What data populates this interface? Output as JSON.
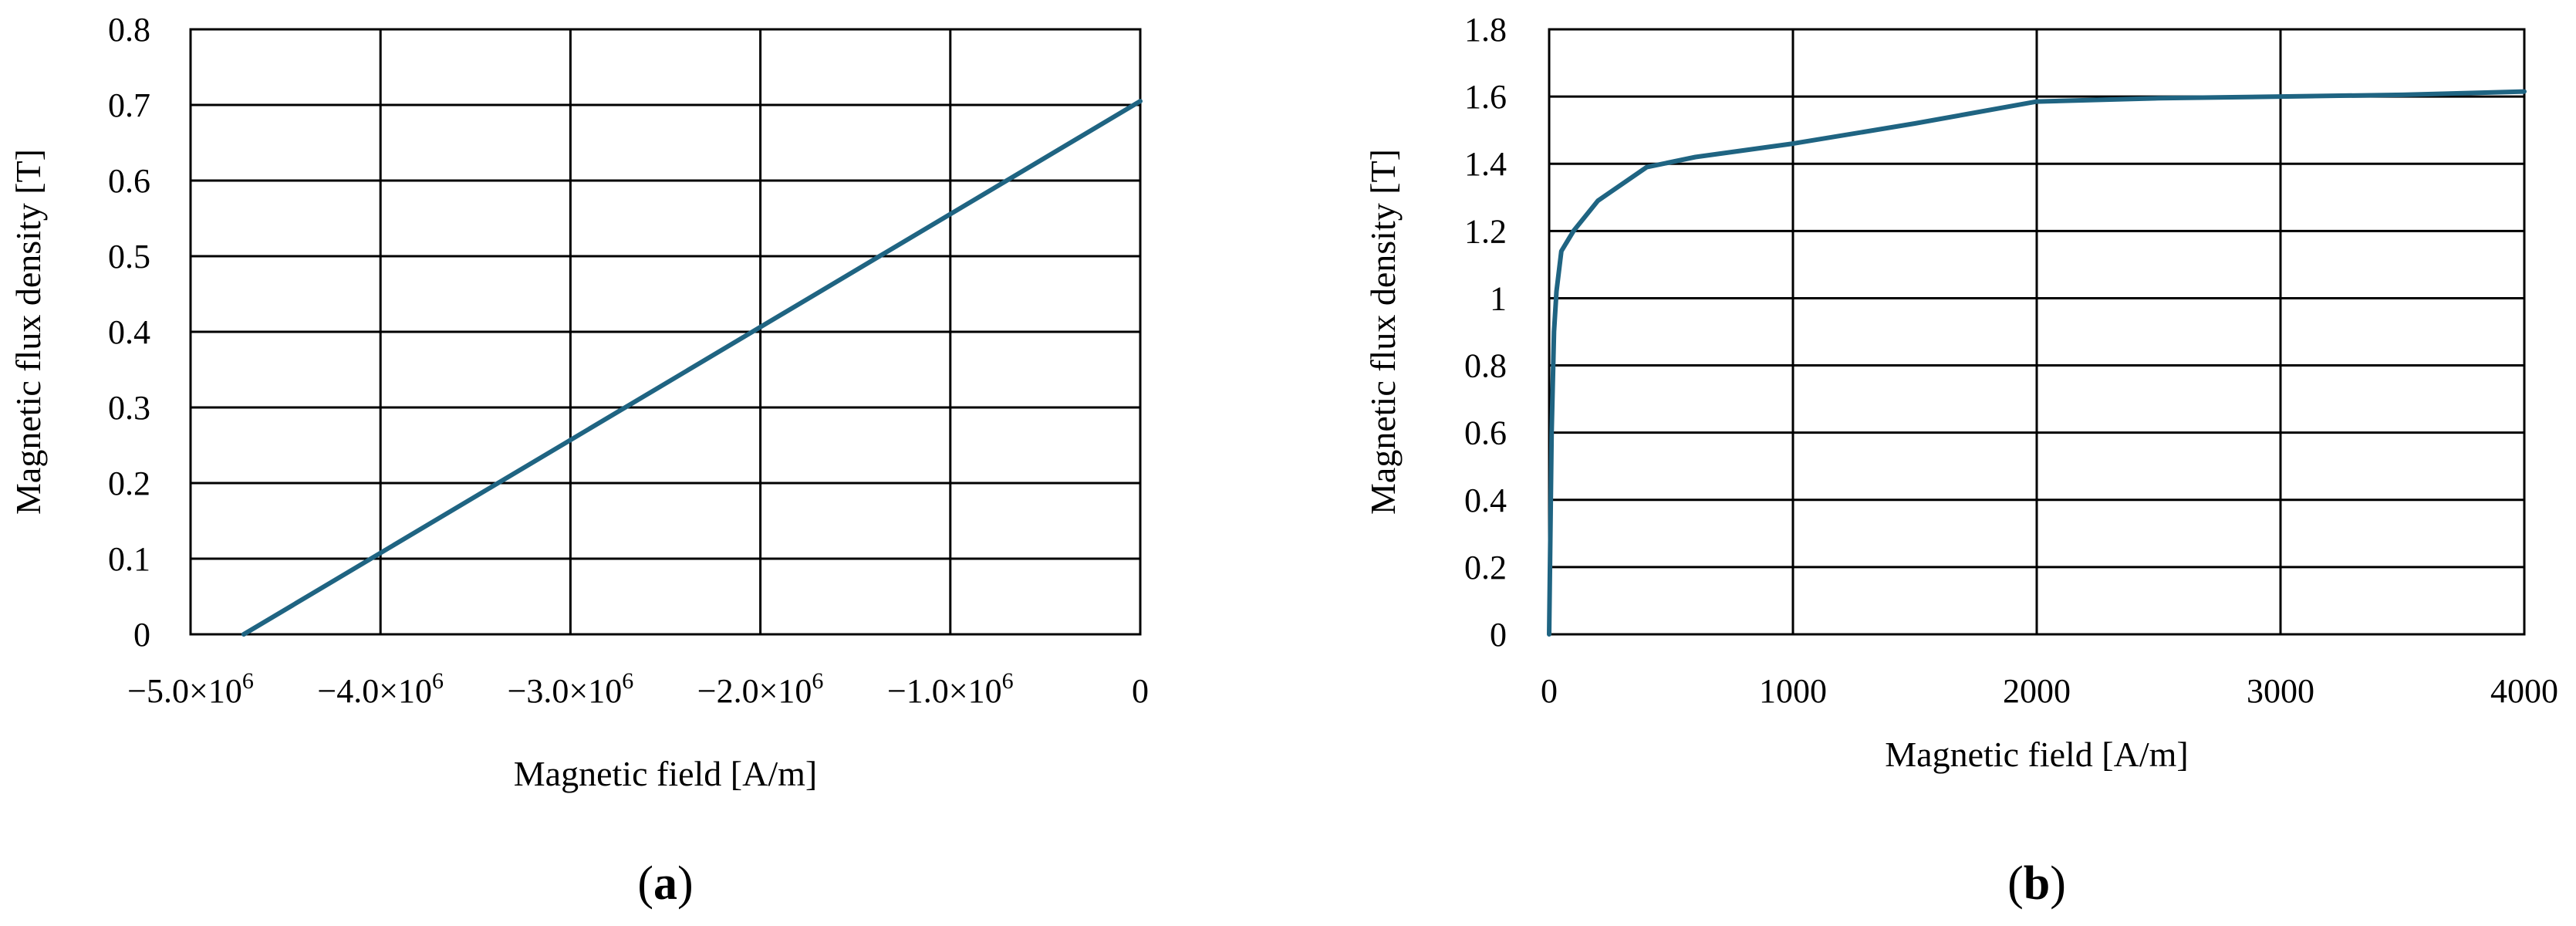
{
  "chart_data": [
    {
      "type": "line",
      "caption_letter": "a",
      "xlabel": "Magnetic field  [A/m]",
      "ylabel": "Magnetic flux density  [T]",
      "xlim": [
        -5000000,
        0
      ],
      "ylim": [
        0,
        0.8
      ],
      "x_ticks": [
        -5000000,
        -4000000,
        -3000000,
        -2000000,
        -1000000,
        0
      ],
      "x_tick_labels": [
        {
          "sign": "−",
          "mant": "5.0×10",
          "exp": "6"
        },
        {
          "sign": "−",
          "mant": "4.0×10",
          "exp": "6"
        },
        {
          "sign": "−",
          "mant": "3.0×10",
          "exp": "6"
        },
        {
          "sign": "−",
          "mant": "2.0×10",
          "exp": "6"
        },
        {
          "sign": "−",
          "mant": "1.0×10",
          "exp": "6"
        },
        {
          "sign": "",
          "mant": "0",
          "exp": ""
        }
      ],
      "y_ticks": [
        0,
        0.1,
        0.2,
        0.3,
        0.4,
        0.5,
        0.6,
        0.7,
        0.8
      ],
      "y_tick_labels": [
        "0",
        "0.1",
        "0.2",
        "0.3",
        "0.4",
        "0.5",
        "0.6",
        "0.7",
        "0.8"
      ],
      "grid": true,
      "color": "#1f6482",
      "series": [
        {
          "x": [
            -4720000,
            0
          ],
          "y": [
            0,
            0.705
          ]
        }
      ]
    },
    {
      "type": "line",
      "caption_letter": "b",
      "xlabel": "Magnetic field  [A/m]",
      "ylabel": "Magnetic flux density  [T]",
      "xlim": [
        0,
        4000
      ],
      "ylim": [
        0,
        1.8
      ],
      "x_ticks": [
        0,
        1000,
        2000,
        3000,
        4000
      ],
      "x_tick_labels": [
        "0",
        "1000",
        "2000",
        "3000",
        "4000"
      ],
      "y_ticks": [
        0,
        0.2,
        0.4,
        0.6,
        0.8,
        1.0,
        1.2,
        1.4,
        1.6,
        1.8
      ],
      "y_tick_labels": [
        "0",
        "0.2",
        "0.4",
        "0.6",
        "0.8",
        "1",
        "1.2",
        "1.4",
        "1.6",
        "1.8"
      ],
      "grid": true,
      "color": "#1f6482",
      "series": [
        {
          "x": [
            0,
            10,
            20,
            30,
            50,
            100,
            200,
            400,
            600,
            1000,
            1500,
            2000,
            2500,
            3000,
            3500,
            4000
          ],
          "y": [
            0,
            0.6,
            0.9,
            1.02,
            1.14,
            1.2,
            1.29,
            1.39,
            1.42,
            1.46,
            1.52,
            1.585,
            1.595,
            1.6,
            1.605,
            1.615
          ]
        }
      ]
    }
  ]
}
